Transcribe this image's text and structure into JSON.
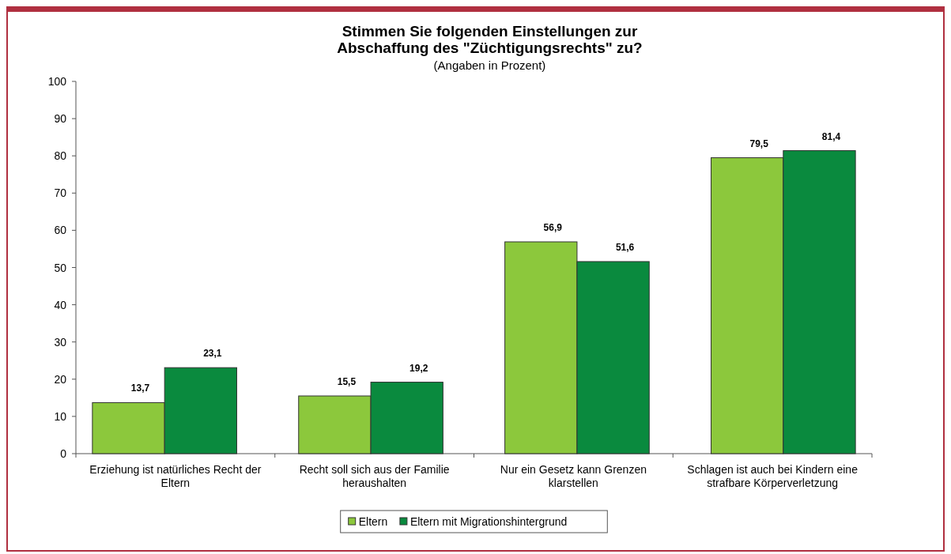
{
  "chart_data": {
    "type": "bar",
    "title": "Stimmen Sie folgenden Einstellungen zur Abschaffung des \"Züchtigungsrechts\" zu?",
    "subtitle": "(Angaben in Prozent)",
    "categories": [
      "Erziehung ist natürliches Recht der Eltern",
      "Recht soll sich aus der Familie heraushalten",
      "Nur ein Gesetz kann Grenzen klarstellen",
      "Schlagen ist auch bei Kindern eine strafbare Körperverletzung"
    ],
    "series": [
      {
        "name": "Eltern",
        "color": "#8cc83c",
        "values": [
          13.7,
          15.5,
          56.9,
          79.5
        ],
        "value_labels": [
          "13,7",
          "15,5",
          "56,9",
          "79,5"
        ]
      },
      {
        "name": "Eltern mit Migrationshintergrund",
        "color": "#0a8a3e",
        "values": [
          23.1,
          19.2,
          51.6,
          81.4
        ],
        "value_labels": [
          "23,1",
          "19,2",
          "51,6",
          "81,4"
        ]
      }
    ],
    "ylim": [
      0,
      100
    ],
    "yticks": [
      0,
      10,
      20,
      30,
      40,
      50,
      60,
      70,
      80,
      90,
      100
    ],
    "legend": "bottom"
  }
}
